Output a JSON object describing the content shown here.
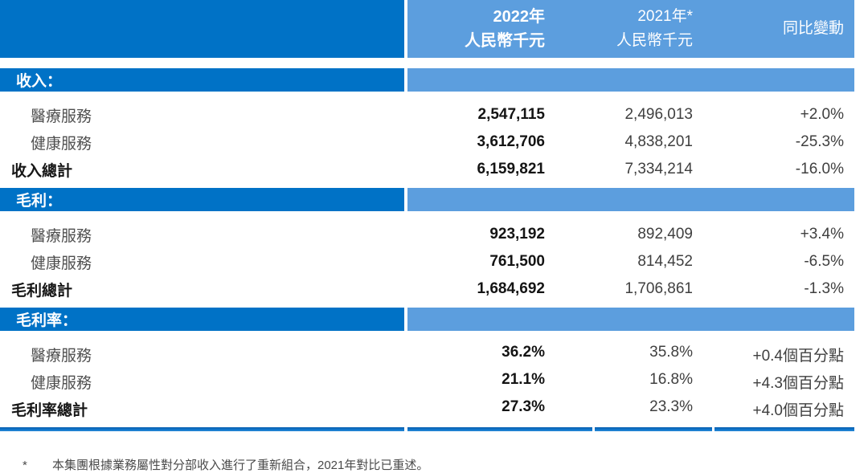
{
  "colors": {
    "dark_blue": "#0072C6",
    "light_blue": "#5C9EDE",
    "rule_blue": "#0d74ca"
  },
  "table": {
    "header": {
      "col_2022_line1": "2022年",
      "col_2022_line2": "人民幣千元",
      "col_2021_line1": "2021年*",
      "col_2021_line2": "人民幣千元",
      "col_change": "同比變動"
    },
    "sections": [
      {
        "title": "收入：",
        "rows": [
          {
            "label": "醫療服務",
            "v2022": "2,547,115",
            "v2021": "2,496,013",
            "change": "+2.0%"
          },
          {
            "label": "健康服務",
            "v2022": "3,612,706",
            "v2021": "4,838,201",
            "change": "-25.3%"
          },
          {
            "label": "收入總計",
            "v2022": "6,159,821",
            "v2021": "7,334,214",
            "change": "-16.0%"
          }
        ]
      },
      {
        "title": "毛利：",
        "rows": [
          {
            "label": "醫療服務",
            "v2022": "923,192",
            "v2021": "892,409",
            "change": "+3.4%"
          },
          {
            "label": "健康服務",
            "v2022": "761,500",
            "v2021": "814,452",
            "change": "-6.5%"
          },
          {
            "label": "毛利總計",
            "v2022": "1,684,692",
            "v2021": "1,706,861",
            "change": "-1.3%"
          }
        ]
      },
      {
        "title": "毛利率：",
        "rows": [
          {
            "label": "醫療服務",
            "v2022": "36.2%",
            "v2021": "35.8%",
            "change": "+0.4個百分點"
          },
          {
            "label": "健康服務",
            "v2022": "21.1%",
            "v2021": "16.8%",
            "change": "+4.3個百分點"
          },
          {
            "label": "毛利率總計",
            "v2022": "27.3%",
            "v2021": "23.3%",
            "change": "+4.0個百分點"
          }
        ]
      }
    ]
  },
  "footnote": {
    "marker": "*",
    "text": "本集團根據業務屬性對分部收入進行了重新組合，2021年對比已重述。"
  }
}
